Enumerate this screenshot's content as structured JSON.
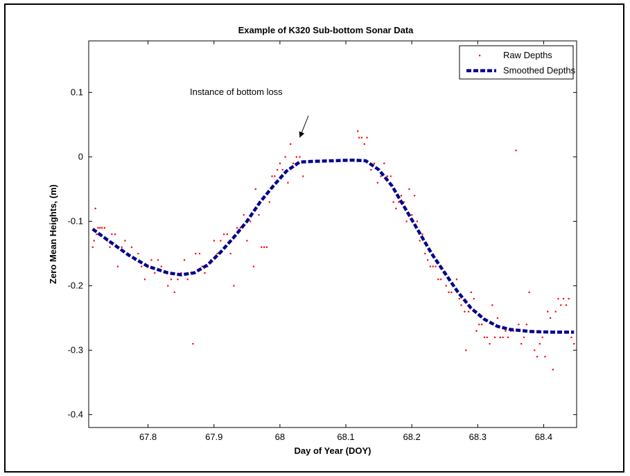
{
  "chart_data": {
    "type": "scatter",
    "title": "Example of K320 Sub-bottom Sonar Data",
    "xlabel": "Day of Year (DOY)",
    "ylabel": "Zero Mean Heights, (m)",
    "xlim": [
      67.71,
      68.45
    ],
    "ylim": [
      -0.42,
      0.18
    ],
    "xticks": [
      67.7,
      67.8,
      67.9,
      68.0,
      68.1,
      68.2,
      68.3,
      68.4
    ],
    "xtick_labels": [
      "67.7",
      "67.8",
      "67.9",
      "68",
      "68.1",
      "68.2",
      "68.3",
      "68.4"
    ],
    "yticks": [
      0.1,
      0.0,
      -0.1,
      -0.2,
      -0.3,
      -0.4
    ],
    "ytick_labels": [
      "0.1",
      "0",
      "-0.1",
      "-0.2",
      "-0.3",
      "-0.4"
    ],
    "grid": false,
    "legend_position": "top-right",
    "annotation": {
      "text": "Instance of bottom loss",
      "arrow_to": [
        68.03,
        0.03
      ]
    },
    "series": [
      {
        "name": "Raw Depths",
        "style": "points",
        "color": "#ff0000",
        "points": [
          [
            67.716,
            -0.14
          ],
          [
            67.718,
            -0.13
          ],
          [
            67.72,
            -0.08
          ],
          [
            67.722,
            -0.12
          ],
          [
            67.724,
            -0.11
          ],
          [
            67.727,
            -0.11
          ],
          [
            67.73,
            -0.11
          ],
          [
            67.734,
            -0.11
          ],
          [
            67.738,
            -0.13
          ],
          [
            67.742,
            -0.14
          ],
          [
            67.745,
            -0.12
          ],
          [
            67.75,
            -0.12
          ],
          [
            67.754,
            -0.17
          ],
          [
            67.76,
            -0.14
          ],
          [
            67.765,
            -0.13
          ],
          [
            67.77,
            -0.15
          ],
          [
            67.775,
            -0.14
          ],
          [
            67.78,
            -0.16
          ],
          [
            67.785,
            -0.15
          ],
          [
            67.79,
            -0.17
          ],
          [
            67.795,
            -0.19
          ],
          [
            67.8,
            -0.17
          ],
          [
            67.805,
            -0.16
          ],
          [
            67.81,
            -0.18
          ],
          [
            67.815,
            -0.16
          ],
          [
            67.82,
            -0.17
          ],
          [
            67.825,
            -0.18
          ],
          [
            67.83,
            -0.2
          ],
          [
            67.835,
            -0.19
          ],
          [
            67.84,
            -0.21
          ],
          [
            67.845,
            -0.19
          ],
          [
            67.85,
            -0.18
          ],
          [
            67.855,
            -0.16
          ],
          [
            67.86,
            -0.19
          ],
          [
            67.865,
            -0.18
          ],
          [
            67.868,
            -0.29
          ],
          [
            67.872,
            -0.15
          ],
          [
            67.878,
            -0.15
          ],
          [
            67.882,
            -0.17
          ],
          [
            67.886,
            -0.18
          ],
          [
            67.89,
            -0.17
          ],
          [
            67.895,
            -0.16
          ],
          [
            67.9,
            -0.13
          ],
          [
            67.905,
            -0.15
          ],
          [
            67.91,
            -0.13
          ],
          [
            67.915,
            -0.12
          ],
          [
            67.92,
            -0.12
          ],
          [
            67.925,
            -0.15
          ],
          [
            67.93,
            -0.2
          ],
          [
            67.935,
            -0.11
          ],
          [
            67.94,
            -0.11
          ],
          [
            67.945,
            -0.09
          ],
          [
            67.95,
            -0.13
          ],
          [
            67.955,
            -0.1
          ],
          [
            67.96,
            -0.17
          ],
          [
            67.963,
            -0.05
          ],
          [
            67.968,
            -0.09
          ],
          [
            67.972,
            -0.14
          ],
          [
            67.976,
            -0.14
          ],
          [
            67.98,
            -0.14
          ],
          [
            67.984,
            -0.07
          ],
          [
            67.988,
            -0.03
          ],
          [
            67.992,
            -0.03
          ],
          [
            67.996,
            -0.02
          ],
          [
            68.0,
            -0.01
          ],
          [
            68.004,
            -0.02
          ],
          [
            68.008,
            0.0
          ],
          [
            68.012,
            -0.04
          ],
          [
            68.016,
            0.02
          ],
          [
            68.02,
            -0.01
          ],
          [
            68.025,
            0.0
          ],
          [
            68.03,
            0.0
          ],
          [
            68.035,
            -0.03
          ],
          [
            68.118,
            0.04
          ],
          [
            68.12,
            0.03
          ],
          [
            68.124,
            0.03
          ],
          [
            68.128,
            0.02
          ],
          [
            68.132,
            0.03
          ],
          [
            68.138,
            -0.02
          ],
          [
            68.143,
            -0.01
          ],
          [
            68.148,
            -0.04
          ],
          [
            68.153,
            -0.03
          ],
          [
            68.158,
            -0.01
          ],
          [
            68.163,
            -0.03
          ],
          [
            68.168,
            -0.03
          ],
          [
            68.172,
            -0.07
          ],
          [
            68.176,
            -0.08
          ],
          [
            68.18,
            -0.07
          ],
          [
            68.184,
            -0.06
          ],
          [
            68.188,
            -0.07
          ],
          [
            68.192,
            -0.1
          ],
          [
            68.196,
            -0.05
          ],
          [
            68.2,
            -0.09
          ],
          [
            68.204,
            -0.06
          ],
          [
            68.208,
            -0.1
          ],
          [
            68.212,
            -0.13
          ],
          [
            68.216,
            -0.12
          ],
          [
            68.22,
            -0.15
          ],
          [
            68.224,
            -0.16
          ],
          [
            68.228,
            -0.17
          ],
          [
            68.232,
            -0.17
          ],
          [
            68.236,
            -0.17
          ],
          [
            68.24,
            -0.19
          ],
          [
            68.244,
            -0.19
          ],
          [
            68.248,
            -0.18
          ],
          [
            68.252,
            -0.2
          ],
          [
            68.256,
            -0.21
          ],
          [
            68.26,
            -0.21
          ],
          [
            68.264,
            -0.2
          ],
          [
            68.268,
            -0.19
          ],
          [
            68.272,
            -0.22
          ],
          [
            68.275,
            -0.23
          ],
          [
            68.28,
            -0.24
          ],
          [
            68.282,
            -0.3
          ],
          [
            68.286,
            -0.24
          ],
          [
            68.29,
            -0.21
          ],
          [
            68.294,
            -0.22
          ],
          [
            68.298,
            -0.27
          ],
          [
            68.302,
            -0.26
          ],
          [
            68.306,
            -0.26
          ],
          [
            68.31,
            -0.28
          ],
          [
            68.314,
            -0.28
          ],
          [
            68.318,
            -0.29
          ],
          [
            68.322,
            -0.23
          ],
          [
            68.326,
            -0.28
          ],
          [
            68.33,
            -0.25
          ],
          [
            68.334,
            -0.28
          ],
          [
            68.338,
            -0.28
          ],
          [
            68.342,
            -0.27
          ],
          [
            68.346,
            -0.28
          ],
          [
            68.35,
            -0.27
          ],
          [
            68.354,
            -0.27
          ],
          [
            68.358,
            0.01
          ],
          [
            68.362,
            -0.26
          ],
          [
            68.366,
            -0.29
          ],
          [
            68.37,
            -0.28
          ],
          [
            68.374,
            -0.26
          ],
          [
            68.378,
            -0.21
          ],
          [
            68.382,
            -0.27
          ],
          [
            68.386,
            -0.3
          ],
          [
            68.39,
            -0.31
          ],
          [
            68.394,
            -0.29
          ],
          [
            68.398,
            -0.28
          ],
          [
            68.402,
            -0.31
          ],
          [
            68.406,
            -0.24
          ],
          [
            68.41,
            -0.25
          ],
          [
            68.414,
            -0.33
          ],
          [
            68.418,
            -0.24
          ],
          [
            68.422,
            -0.22
          ],
          [
            68.426,
            -0.23
          ],
          [
            68.43,
            -0.22
          ],
          [
            68.434,
            -0.23
          ],
          [
            68.438,
            -0.22
          ],
          [
            68.442,
            -0.28
          ],
          [
            68.446,
            -0.29
          ]
        ]
      },
      {
        "name": "Smoothed Depths",
        "style": "dashed-line",
        "color": "#00008b",
        "points": [
          [
            67.716,
            -0.112
          ],
          [
            67.74,
            -0.13
          ],
          [
            67.77,
            -0.152
          ],
          [
            67.8,
            -0.17
          ],
          [
            67.83,
            -0.18
          ],
          [
            67.85,
            -0.183
          ],
          [
            67.87,
            -0.18
          ],
          [
            67.89,
            -0.168
          ],
          [
            67.91,
            -0.148
          ],
          [
            67.93,
            -0.125
          ],
          [
            67.95,
            -0.1
          ],
          [
            67.97,
            -0.07
          ],
          [
            67.99,
            -0.045
          ],
          [
            68.01,
            -0.022
          ],
          [
            68.03,
            -0.008
          ],
          [
            68.05,
            -0.007
          ],
          [
            68.08,
            -0.006
          ],
          [
            68.11,
            -0.005
          ],
          [
            68.13,
            -0.006
          ],
          [
            68.15,
            -0.02
          ],
          [
            68.17,
            -0.045
          ],
          [
            68.19,
            -0.08
          ],
          [
            68.21,
            -0.115
          ],
          [
            68.23,
            -0.15
          ],
          [
            68.25,
            -0.18
          ],
          [
            68.27,
            -0.21
          ],
          [
            68.29,
            -0.235
          ],
          [
            68.31,
            -0.252
          ],
          [
            68.33,
            -0.263
          ],
          [
            68.35,
            -0.268
          ],
          [
            68.38,
            -0.271
          ],
          [
            68.41,
            -0.272
          ],
          [
            68.446,
            -0.272
          ]
        ]
      }
    ]
  }
}
